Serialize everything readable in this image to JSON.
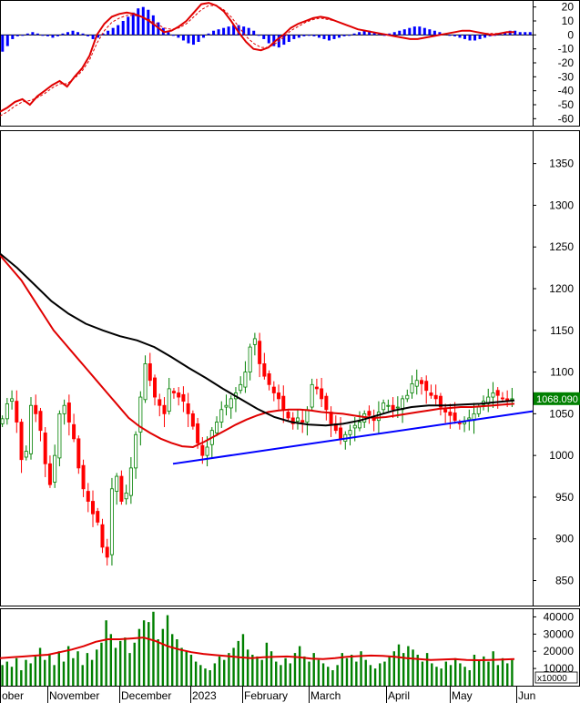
{
  "chart_data": [
    {
      "type": "bar",
      "panel": "macd",
      "ylim": [
        -65,
        25
      ],
      "yticks": [
        20,
        10,
        0,
        -10,
        -20,
        -30,
        -40,
        -50,
        -60
      ],
      "series": [
        {
          "values": [
            -12,
            -8,
            -3,
            -1,
            0,
            1,
            2,
            1,
            0,
            -1,
            -2,
            -1,
            1,
            2,
            3,
            2,
            1,
            -1,
            -3,
            -2,
            1,
            3,
            5,
            7,
            10,
            13,
            16,
            19,
            20,
            18,
            14,
            9,
            5,
            2,
            0,
            -2,
            -4,
            -6,
            -7,
            -5,
            -2,
            1,
            3,
            4,
            5,
            6,
            7,
            7,
            6,
            5,
            3,
            0,
            -3,
            -6,
            -8,
            -9,
            -7,
            -5,
            -3,
            -2,
            -1,
            0,
            -1,
            -2,
            -3,
            -4,
            -3,
            -2,
            -1,
            0,
            1,
            2,
            3,
            3,
            2,
            1,
            0,
            1,
            2,
            3,
            4,
            5,
            6,
            6,
            5,
            4,
            3,
            2,
            1,
            0,
            -1,
            -2,
            -3,
            -4,
            -4,
            -3,
            -2,
            -1,
            0,
            1,
            2,
            3,
            3,
            2,
            2,
            2
          ]
        },
        {
          "values": [
            -55,
            -52,
            -48,
            -46,
            -50,
            -44,
            -40,
            -36,
            -33,
            -37,
            -30,
            -24,
            -15,
            0,
            8,
            13,
            15,
            16,
            15,
            13,
            10,
            6,
            2,
            3,
            6,
            10,
            16,
            22,
            23,
            21,
            17,
            10,
            2,
            -5,
            -10,
            -11,
            -9,
            -4,
            0,
            5,
            8,
            10,
            12,
            13,
            12,
            10,
            8,
            6,
            4,
            3,
            2,
            1,
            0,
            -1,
            -2,
            -3,
            -3,
            -2,
            -1,
            0,
            1,
            2,
            3,
            3,
            2,
            1,
            0,
            1,
            2,
            2
          ]
        },
        {
          "values": [
            -58,
            -55,
            -51,
            -48,
            -47,
            -45,
            -42,
            -38,
            -35,
            -35,
            -31,
            -26,
            -18,
            -6,
            3,
            9,
            12,
            14,
            14,
            13,
            11,
            8,
            5,
            4,
            5,
            8,
            13,
            18,
            21,
            21,
            18,
            13,
            6,
            -1,
            -6,
            -9,
            -9,
            -6,
            -2,
            3,
            6,
            9,
            11,
            12,
            11,
            10,
            8,
            6,
            4,
            3,
            2,
            1,
            0,
            -1,
            -2,
            -3,
            -3,
            -2,
            -1,
            0,
            1,
            2,
            3,
            3,
            2,
            1,
            1,
            1,
            2,
            2
          ]
        }
      ]
    },
    {
      "type": "candlestick",
      "panel": "price",
      "ylim": [
        820,
        1390
      ],
      "yticks": [
        1350,
        1300,
        1250,
        1200,
        1150,
        1100,
        1050,
        1000,
        950,
        900,
        850
      ],
      "last_price_label": "1068.090",
      "series": [
        {
          "values": [
            1044,
            1062,
            1068,
            1040,
            995,
            1005,
            1060,
            1050,
            1030,
            990,
            965,
            1000,
            1050,
            1060,
            1040,
            1020,
            985,
            960,
            945,
            930,
            920,
            890,
            878,
            960,
            975,
            945,
            955,
            985,
            1025,
            1070,
            1110,
            1090,
            1070,
            1060,
            1050,
            1080,
            1075,
            1070,
            1065,
            1050,
            1035,
            1015,
            1000,
            1010,
            1030,
            1040,
            1055,
            1060,
            1068,
            1075,
            1085,
            1100,
            1130,
            1140,
            1110,
            1095,
            1085,
            1075,
            1068,
            1055,
            1045,
            1038,
            1045,
            1040,
            1055,
            1085,
            1080,
            1068,
            1055,
            1038,
            1030,
            1020,
            1025,
            1030,
            1036,
            1040,
            1050,
            1048,
            1042,
            1052,
            1063,
            1060,
            1055,
            1058,
            1068,
            1072,
            1086,
            1090,
            1086,
            1078,
            1072,
            1068,
            1058,
            1052,
            1048,
            1042,
            1038,
            1040,
            1045,
            1050,
            1058,
            1065,
            1070,
            1075,
            1072,
            1068,
            1065,
            1068
          ]
        },
        {
          "values": [
            1240,
            1225,
            1210,
            1190,
            1170,
            1150,
            1135,
            1120,
            1105,
            1090,
            1075,
            1060,
            1045,
            1035,
            1027,
            1020,
            1015,
            1011,
            1010,
            1016,
            1023,
            1030,
            1037,
            1043,
            1048,
            1052,
            1054,
            1055,
            1055,
            1054,
            1052,
            1051,
            1050,
            1048,
            1046,
            1045,
            1046,
            1048,
            1050,
            1052,
            1054,
            1056,
            1057,
            1058,
            1058,
            1059,
            1060,
            1061,
            1062
          ]
        },
        {
          "values": [
            1242,
            1225,
            1205,
            1185,
            1170,
            1158,
            1150,
            1143,
            1138,
            1130,
            1118,
            1105,
            1093,
            1080,
            1068,
            1056,
            1046,
            1040,
            1037,
            1036,
            1038,
            1042,
            1048,
            1054,
            1058,
            1060,
            1060,
            1061,
            1062,
            1064,
            1066
          ]
        },
        {
          "values": [
            990,
            1053
          ]
        }
      ]
    },
    {
      "type": "bar",
      "panel": "volume",
      "ylim": [
        0,
        45000
      ],
      "yticks": [
        40000,
        30000,
        20000,
        10000
      ],
      "unit_label": "x10000",
      "series": [
        {
          "values": [
            12000,
            14000,
            11000,
            16000,
            9000,
            15000,
            13000,
            17000,
            22000,
            15000,
            18000,
            12000,
            20000,
            14000,
            23000,
            16000,
            20000,
            12000,
            19000,
            15000,
            21000,
            25000,
            38000,
            30000,
            22000,
            26000,
            28000,
            19000,
            25000,
            33000,
            38000,
            37000,
            43000,
            27000,
            33000,
            41000,
            30000,
            27000,
            22000,
            20000,
            18000,
            14000,
            12000,
            10000,
            9000,
            13000,
            17000,
            15000,
            19000,
            22000,
            26000,
            30000,
            21000,
            18000,
            17000,
            15000,
            25000,
            20000,
            14000,
            12000,
            16000,
            13000,
            19000,
            23000,
            17000,
            14000,
            19000,
            15000,
            13000,
            11000,
            9000,
            12000,
            19000,
            16000,
            18000,
            14000,
            20000,
            15000,
            12000,
            10000,
            13000,
            14000,
            17000,
            20000,
            24000,
            19000,
            23000,
            21000,
            18000,
            14000,
            19000,
            13000,
            11000,
            10000,
            14000,
            12000,
            16000,
            13000,
            11000,
            9000,
            18000,
            15000,
            17000,
            14000,
            20000,
            12000,
            16000,
            13000,
            15000
          ]
        },
        {
          "values": [
            16000,
            16500,
            17000,
            17500,
            18000,
            19500,
            21000,
            23000,
            25500,
            27000,
            27000,
            27500,
            28000,
            26000,
            23000,
            21000,
            19500,
            18500,
            17800,
            17200,
            16500,
            16000,
            16500,
            16800,
            17000,
            16500,
            15800,
            15500,
            16000,
            16800,
            17200,
            17500,
            17300,
            16800,
            16000,
            15500,
            15000,
            15200,
            15500,
            15000,
            14800,
            15000,
            15200,
            15500
          ]
        }
      ]
    }
  ],
  "x_axis": {
    "months": [
      "ober",
      "November",
      "December",
      "2023",
      "February",
      "March",
      "April",
      "May",
      "Jun"
    ]
  },
  "colors": {
    "up": "#008000",
    "down": "#ff0000",
    "ma_fast": "#e00000",
    "ma_slow": "#000000",
    "trendline": "#0000ff",
    "volume": "#008000",
    "macd_hist": "#0000ff"
  }
}
